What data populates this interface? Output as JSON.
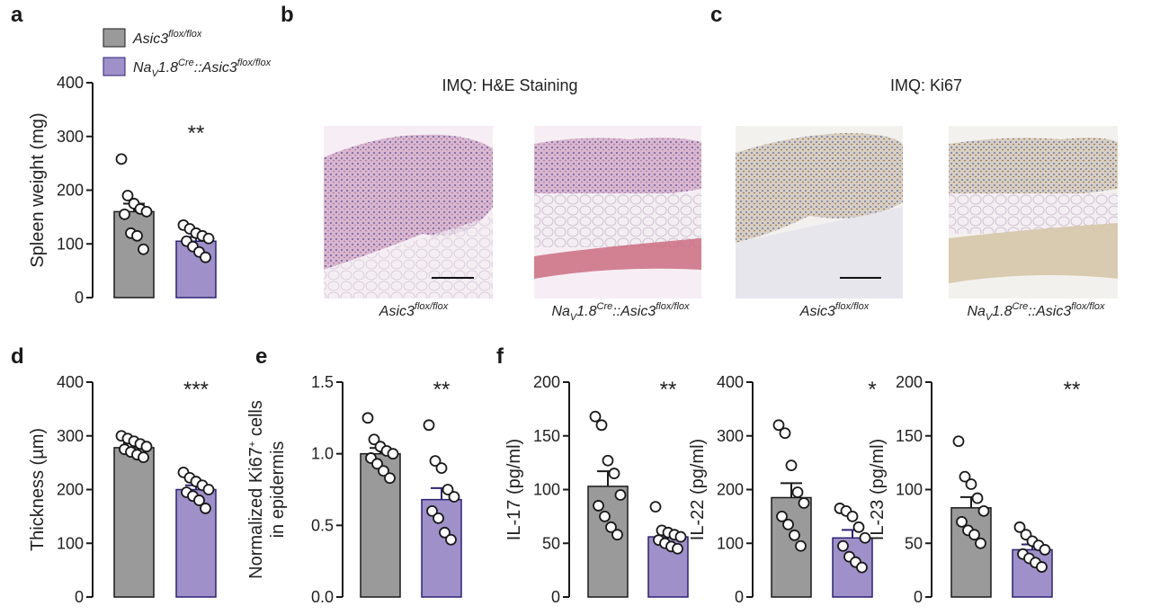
{
  "colors": {
    "control": "#9a9a9a",
    "knockout": "#9f90c9",
    "knockout_edge": "#2c2275",
    "axis": "#1a1a1a"
  },
  "legend": {
    "control": {
      "main": "Asic3",
      "sup": "flox/flox"
    },
    "knockout": {
      "pre": "Na",
      "sub": "V",
      "mid": "1.8",
      "sup1": "Cre",
      "mid2": "::Asic3",
      "sup2": "flox/flox"
    }
  },
  "panels": {
    "a": "a",
    "b": "b",
    "c": "c",
    "d": "d",
    "e": "e",
    "f": "f"
  },
  "histology": {
    "b_title": "IMQ: H&E Staining",
    "c_title": "IMQ: Ki67",
    "captions": [
      {
        "main": "Asic3",
        "sup": "flox/flox"
      },
      {
        "pre": "Na",
        "sub": "V",
        "mid": "1.8",
        "sup1": "Cre",
        "mid2": "::Asic3",
        "sup2": "flox/flox"
      },
      {
        "main": "Asic3",
        "sup": "flox/flox"
      },
      {
        "pre": "Na",
        "sub": "V",
        "mid": "1.8",
        "sup1": "Cre",
        "mid2": "::Asic3",
        "sup2": "flox/flox"
      }
    ]
  },
  "chart_data": [
    {
      "panel": "a",
      "type": "bar",
      "ylabel": "Spleen weight (mg)",
      "ylim": [
        0,
        400
      ],
      "yticks": [
        "0",
        "100",
        "200",
        "300",
        "400"
      ],
      "significance": "**",
      "series": [
        {
          "name": "Asic3 flox/flox",
          "mean": 160,
          "sem": 15,
          "points": [
            258,
            190,
            175,
            165,
            160,
            155,
            120,
            115,
            90
          ]
        },
        {
          "name": "NaV1.8Cre::Asic3 flox/flox",
          "mean": 105,
          "sem": 8,
          "points": [
            135,
            128,
            120,
            115,
            110,
            105,
            95,
            85,
            75
          ]
        }
      ]
    },
    {
      "panel": "d",
      "type": "bar",
      "ylabel": "Thickness (µm)",
      "ylim": [
        0,
        400
      ],
      "yticks": [
        "0",
        "100",
        "200",
        "300",
        "400"
      ],
      "significance": "***",
      "series": [
        {
          "name": "Asic3 flox/flox",
          "mean": 278,
          "sem": 8,
          "points": [
            300,
            295,
            290,
            285,
            280,
            275,
            270,
            265,
            260
          ]
        },
        {
          "name": "NaV1.8Cre::Asic3 flox/flox",
          "mean": 200,
          "sem": 8,
          "points": [
            232,
            222,
            215,
            208,
            200,
            195,
            188,
            180,
            165
          ]
        }
      ]
    },
    {
      "panel": "e",
      "type": "bar",
      "ylabel": [
        "Normalized Ki67",
        "+",
        " cells",
        "in epidermis"
      ],
      "ylim": [
        0,
        1.5
      ],
      "yticks": [
        "0.0",
        "0.5",
        "1.0",
        "1.5"
      ],
      "significance": "**",
      "series": [
        {
          "name": "Asic3 flox/flox",
          "mean": 1.0,
          "sem": 0.04,
          "points": [
            1.25,
            1.1,
            1.05,
            1.02,
            1.0,
            0.97,
            0.93,
            0.88,
            0.83
          ]
        },
        {
          "name": "NaV1.8Cre::Asic3 flox/flox",
          "mean": 0.68,
          "sem": 0.08,
          "points": [
            1.2,
            0.95,
            0.9,
            0.75,
            0.7,
            0.6,
            0.55,
            0.45,
            0.4
          ]
        }
      ]
    },
    {
      "panel": "f1",
      "type": "bar",
      "ylabel": "IL-17 (pg/ml)",
      "ylim": [
        0,
        200
      ],
      "yticks": [
        "0",
        "50",
        "100",
        "150",
        "200"
      ],
      "significance": "**",
      "series": [
        {
          "name": "Asic3 flox/flox",
          "mean": 103,
          "sem": 14,
          "points": [
            168,
            160,
            127,
            115,
            95,
            85,
            75,
            65,
            58
          ]
        },
        {
          "name": "NaV1.8Cre::Asic3 flox/flox",
          "mean": 56,
          "sem": 4,
          "points": [
            84,
            62,
            60,
            58,
            56,
            53,
            50,
            47,
            45
          ]
        }
      ]
    },
    {
      "panel": "f2",
      "type": "bar",
      "ylabel": "IL-22 (pg/ml)",
      "ylim": [
        0,
        400
      ],
      "yticks": [
        "0",
        "100",
        "200",
        "300",
        "400"
      ],
      "significance": "*",
      "series": [
        {
          "name": "Asic3 flox/flox",
          "mean": 185,
          "sem": 27,
          "points": [
            320,
            305,
            245,
            195,
            175,
            150,
            135,
            115,
            95
          ]
        },
        {
          "name": "NaV1.8Cre::Asic3 flox/flox",
          "mean": 110,
          "sem": 15,
          "points": [
            165,
            160,
            150,
            130,
            110,
            95,
            75,
            65,
            55
          ]
        }
      ]
    },
    {
      "panel": "f3",
      "type": "bar",
      "ylabel": "IL-23 (pg/ml)",
      "ylim": [
        0,
        200
      ],
      "yticks": [
        "0",
        "50",
        "100",
        "150",
        "200"
      ],
      "significance": "**",
      "series": [
        {
          "name": "Asic3 flox/flox",
          "mean": 83,
          "sem": 10,
          "points": [
            145,
            112,
            105,
            92,
            80,
            70,
            62,
            58,
            50
          ]
        },
        {
          "name": "NaV1.8Cre::Asic3 flox/flox",
          "mean": 44,
          "sem": 5,
          "points": [
            65,
            58,
            52,
            48,
            44,
            40,
            36,
            32,
            28
          ]
        }
      ]
    }
  ]
}
